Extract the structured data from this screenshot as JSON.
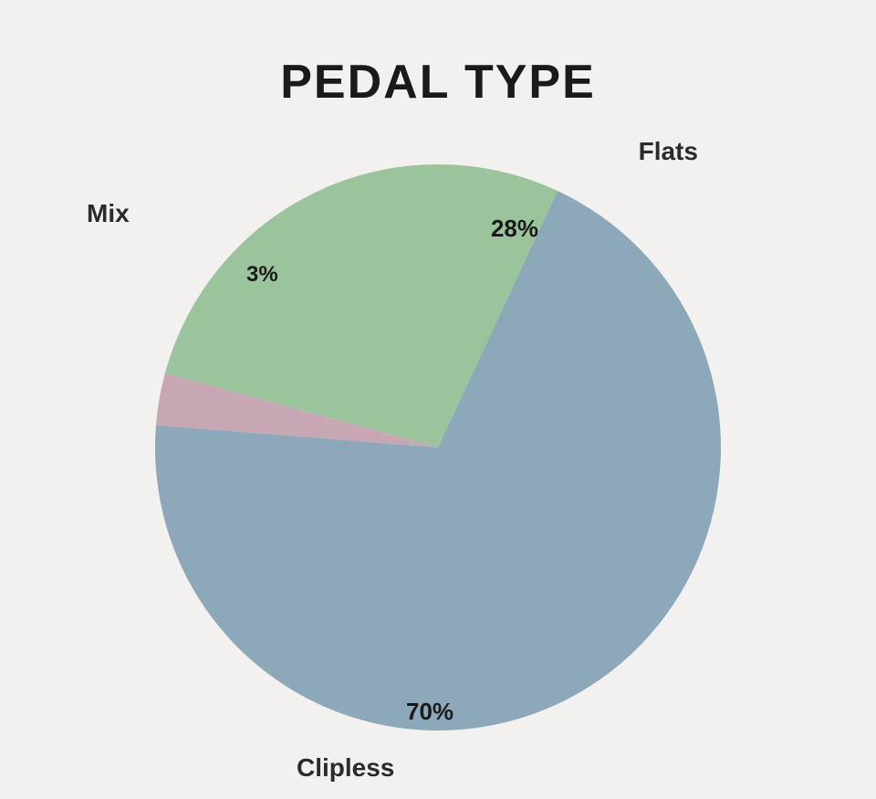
{
  "chart": {
    "type": "pie",
    "title": "PEDAL TYPE",
    "title_fontsize": 52,
    "title_color": "#1a1a1a",
    "background_color": "#f2f1ef",
    "radius": 310,
    "start_angle_deg": -65,
    "slices": [
      {
        "name": "Flats",
        "value": 28,
        "pct_label": "28%",
        "color": "#9bc49d"
      },
      {
        "name": "Mix",
        "value": 3,
        "pct_label": "3%",
        "color": "#c8a7b5"
      },
      {
        "name": "Clipless",
        "value": 70,
        "pct_label": "70%",
        "color": "#8da8b8"
      }
    ],
    "label_fontsize": 28,
    "label_color": "#2b2b2b",
    "pct_fontsize": 26,
    "pct_color": "#1a1a1a"
  }
}
